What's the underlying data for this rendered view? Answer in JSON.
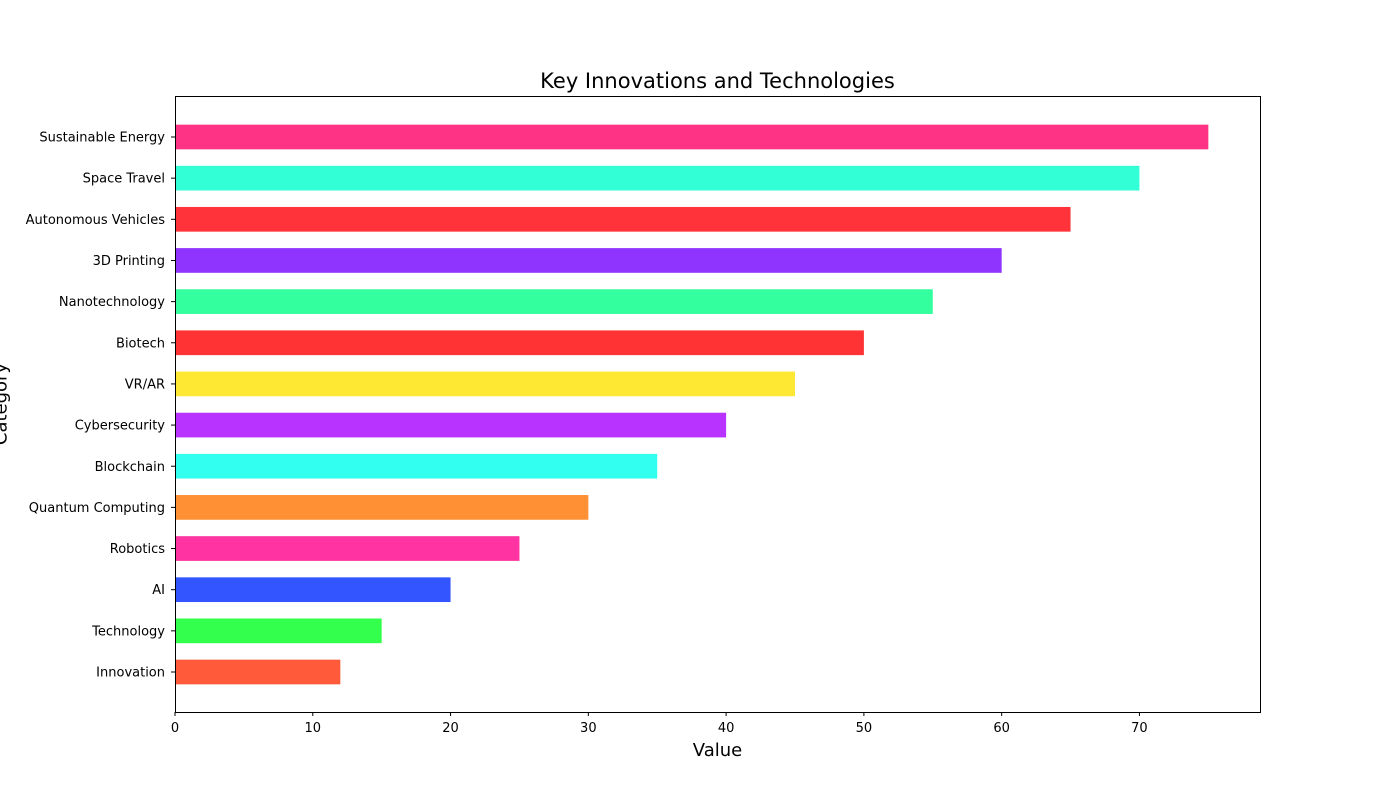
{
  "chart_data": {
    "type": "bar",
    "orientation": "horizontal",
    "title": "Key Innovations and Technologies",
    "xlabel": "Value",
    "ylabel": "Category",
    "categories": [
      "Innovation",
      "Technology",
      "AI",
      "Robotics",
      "Quantum Computing",
      "Blockchain",
      "Cybersecurity",
      "VR/AR",
      "Biotech",
      "Nanotechnology",
      "3D Printing",
      "Autonomous Vehicles",
      "Space Travel",
      "Sustainable Energy"
    ],
    "values": [
      12,
      15,
      20,
      25,
      30,
      35,
      40,
      45,
      50,
      55,
      60,
      65,
      70,
      75
    ],
    "colors": [
      "#ff5a3a",
      "#33ff4d",
      "#3355ff",
      "#ff33a1",
      "#ff9033",
      "#33fff0",
      "#b833ff",
      "#ffe833",
      "#ff3333",
      "#33ff9f",
      "#8f33ff",
      "#ff3339",
      "#33ffd7",
      "#ff3385"
    ],
    "xlim": [
      0,
      78.75
    ],
    "xticks": [
      0,
      10,
      20,
      30,
      40,
      50,
      60,
      70
    ],
    "grid": false,
    "legend": false
  }
}
